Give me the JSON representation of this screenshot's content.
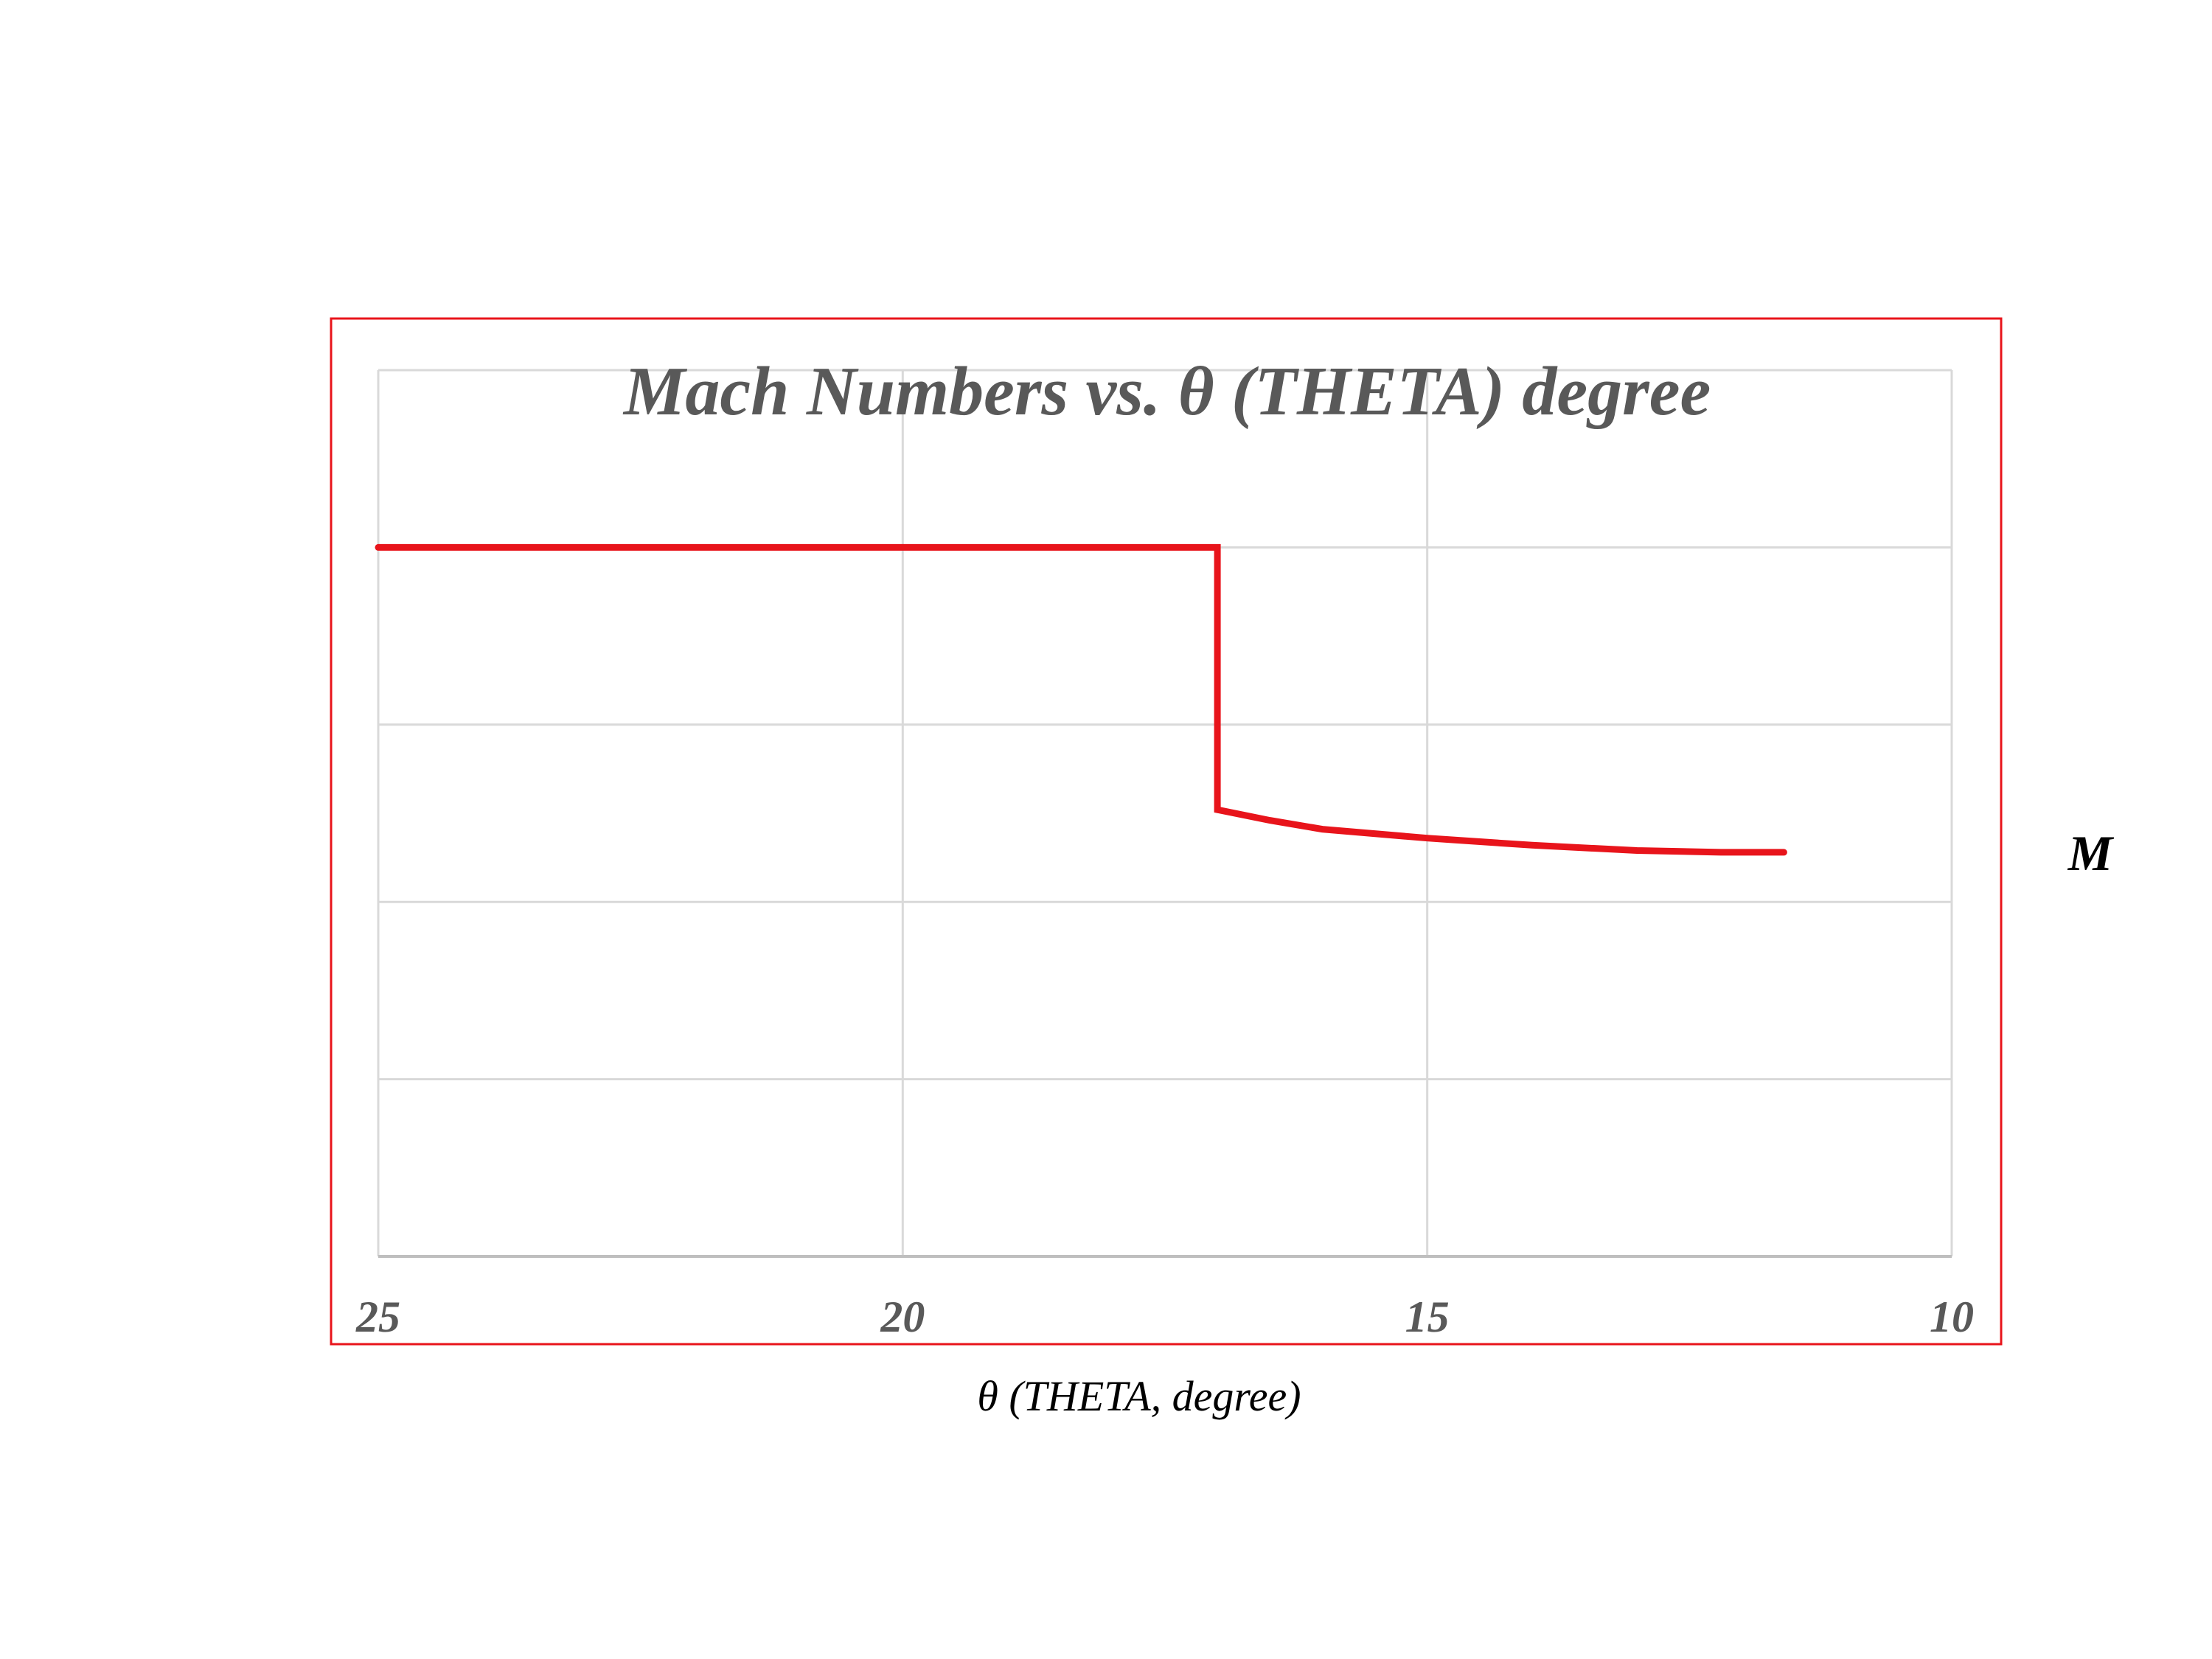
{
  "chart_data": {
    "type": "line",
    "title": "Mach Numbers  vs.   θ (THETA)   degree",
    "xlabel": "θ  (THETA, degree)",
    "ylabel": "M",
    "x_ticks": [
      "25",
      "20",
      "15",
      "10"
    ],
    "xlim": [
      25,
      10
    ],
    "x_reversed": true,
    "ylim": [
      0,
      5
    ],
    "grid": true,
    "y_tick_labels_shown": false,
    "series": [
      {
        "color": "#e8141b",
        "x": [
          25,
          22,
          20,
          18,
          17.05,
          17.0,
          17.0,
          16.5,
          16,
          15,
          14,
          13,
          12.2,
          11.6
        ],
        "y": [
          4.0,
          4.0,
          4.0,
          4.0,
          4.0,
          4.0,
          2.52,
          2.46,
          2.41,
          2.36,
          2.32,
          2.29,
          2.28,
          2.28
        ]
      }
    ],
    "colors": {
      "frame": "#e8141b",
      "grid": "#d9d9d9",
      "axis": "#bfbfbf",
      "title": "#595959",
      "ticks": "#595959",
      "xlabel": "#000000",
      "ylabel": "#000000"
    }
  }
}
